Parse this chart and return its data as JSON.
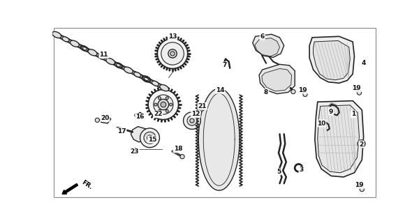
{
  "bg_color": "#ffffff",
  "line_color": "#222222",
  "labels": [
    [
      "1",
      556,
      163
    ],
    [
      "2",
      571,
      219
    ],
    [
      "3",
      460,
      267
    ],
    [
      "4",
      575,
      68
    ],
    [
      "5",
      418,
      270
    ],
    [
      "6",
      388,
      18
    ],
    [
      "7",
      318,
      72
    ],
    [
      "8",
      395,
      122
    ],
    [
      "9",
      515,
      158
    ],
    [
      "10",
      497,
      180
    ],
    [
      "11",
      95,
      52
    ],
    [
      "12",
      265,
      163
    ],
    [
      "13",
      222,
      18
    ],
    [
      "14",
      310,
      118
    ],
    [
      "15",
      185,
      210
    ],
    [
      "16",
      162,
      168
    ],
    [
      "17",
      128,
      195
    ],
    [
      "18",
      232,
      228
    ],
    [
      "19",
      462,
      118
    ],
    [
      "19",
      562,
      115
    ],
    [
      "19",
      567,
      295
    ],
    [
      "20",
      97,
      170
    ],
    [
      "21",
      277,
      148
    ],
    [
      "22",
      195,
      163
    ],
    [
      "23",
      152,
      232
    ]
  ]
}
